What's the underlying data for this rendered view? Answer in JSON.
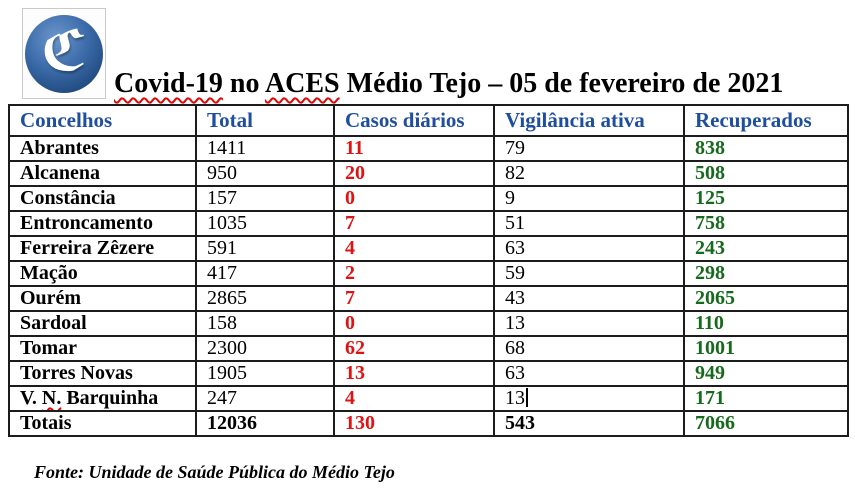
{
  "logo": {
    "letter": "ℭ"
  },
  "title": {
    "segments": [
      {
        "text": "Covid-19",
        "misspelled": true
      },
      {
        "text": " no ",
        "misspelled": false
      },
      {
        "text": "ACES",
        "misspelled": true
      },
      {
        "text": " Médio Tejo – 05 de fevereiro de 2021",
        "misspelled": false
      }
    ]
  },
  "table": {
    "columns": [
      "Concelhos",
      "Total",
      "Casos diários",
      "Vigilância ativa",
      "Recuperados"
    ],
    "rows": [
      {
        "name": [
          {
            "text": "Abrantes"
          }
        ],
        "total": "1411",
        "daily": "11",
        "vigilancia": "79",
        "recuperados": "838"
      },
      {
        "name": [
          {
            "text": "Alcanena"
          }
        ],
        "total": "950",
        "daily": "20",
        "vigilancia": "82",
        "recuperados": "508"
      },
      {
        "name": [
          {
            "text": "Constância"
          }
        ],
        "total": "157",
        "daily": "0",
        "vigilancia": "9",
        "recuperados": "125"
      },
      {
        "name": [
          {
            "text": "Entroncamento"
          }
        ],
        "total": "1035",
        "daily": "7",
        "vigilancia": "51",
        "recuperados": "758"
      },
      {
        "name": [
          {
            "text": "Ferreira Zêzere"
          }
        ],
        "total": "591",
        "daily": "4",
        "vigilancia": "63",
        "recuperados": "243"
      },
      {
        "name": [
          {
            "text": "Mação"
          }
        ],
        "total": "417",
        "daily": "2",
        "vigilancia": "59",
        "recuperados": "298"
      },
      {
        "name": [
          {
            "text": "Ourém"
          }
        ],
        "total": "2865",
        "daily": "7",
        "vigilancia": "43",
        "recuperados": "2065"
      },
      {
        "name": [
          {
            "text": "Sardoal"
          }
        ],
        "total": "158",
        "daily": "0",
        "vigilancia": "13",
        "recuperados": "110"
      },
      {
        "name": [
          {
            "text": "Tomar"
          }
        ],
        "total": "2300",
        "daily": "62",
        "vigilancia": "68",
        "recuperados": "1001"
      },
      {
        "name": [
          {
            "text": "Torres Novas"
          }
        ],
        "total": "1905",
        "daily": "13",
        "vigilancia": "63",
        "recuperados": "949"
      },
      {
        "name": [
          {
            "text": "V. "
          },
          {
            "text": "N.",
            "misspelled": true
          },
          {
            "text": " Barquinha"
          }
        ],
        "total": "247",
        "daily": "4",
        "vigilancia": "13",
        "caret": true,
        "recuperados": "171"
      },
      {
        "name": [
          {
            "text": "Totais"
          }
        ],
        "total": "12036",
        "daily": "130",
        "vigilancia": "543",
        "recuperados": "7066",
        "bold": true
      }
    ]
  },
  "footer": {
    "source": "Fonte: Unidade de Saúde Pública do Médio Tejo"
  },
  "colors": {
    "header_blue": "#1f4e9e",
    "daily_red": "#e01212",
    "recovered_green": "#17691c",
    "table_border": "#1c1c1c",
    "squiggle_red": "#dd0806",
    "logo_blue": "#2f62a7"
  }
}
